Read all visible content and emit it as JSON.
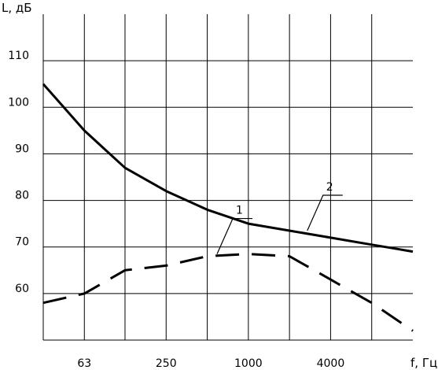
{
  "chart_data": {
    "type": "line",
    "title": "",
    "xlabel": "f, Гц",
    "ylabel": "L, дБ",
    "x_scale": "log",
    "x_range": [
      31.5,
      16000
    ],
    "x_gridlines": [
      63,
      125,
      250,
      500,
      1000,
      2000,
      4000,
      8000
    ],
    "x_tick_labels": [
      {
        "x": 63,
        "text": "63"
      },
      {
        "x": 250,
        "text": "250"
      },
      {
        "x": 1000,
        "text": "1000"
      },
      {
        "x": 4000,
        "text": "4000"
      }
    ],
    "ylim": [
      50,
      120
    ],
    "y_gridlines": [
      60,
      70,
      80,
      90,
      100,
      110
    ],
    "y_tick_labels": [
      {
        "y": 110,
        "text": "110"
      },
      {
        "y": 100,
        "text": "100"
      },
      {
        "y": 90,
        "text": "90"
      },
      {
        "y": 80,
        "text": "80"
      },
      {
        "y": 70,
        "text": "70"
      },
      {
        "y": 60,
        "text": "60"
      }
    ],
    "grid": true,
    "legend": "none",
    "series": [
      {
        "name": "1",
        "style": "dashed",
        "x": [
          31.5,
          63,
          125,
          250,
          500,
          1000,
          2000,
          4000,
          8000,
          16000
        ],
        "values": [
          58,
          60,
          65,
          66,
          68,
          68.5,
          68,
          63,
          58,
          52
        ],
        "label_text": "1",
        "label_anchor": {
          "x": 590,
          "y": 68.5
        }
      },
      {
        "name": "2",
        "style": "solid",
        "x": [
          31.5,
          63,
          125,
          250,
          500,
          1000,
          2000,
          4000,
          8000,
          16000
        ],
        "values": [
          105,
          95,
          87,
          82,
          78,
          75,
          73.5,
          72,
          70.5,
          69
        ],
        "label_text": "2",
        "label_anchor": {
          "x": 2700,
          "y": 73.5
        }
      }
    ]
  }
}
